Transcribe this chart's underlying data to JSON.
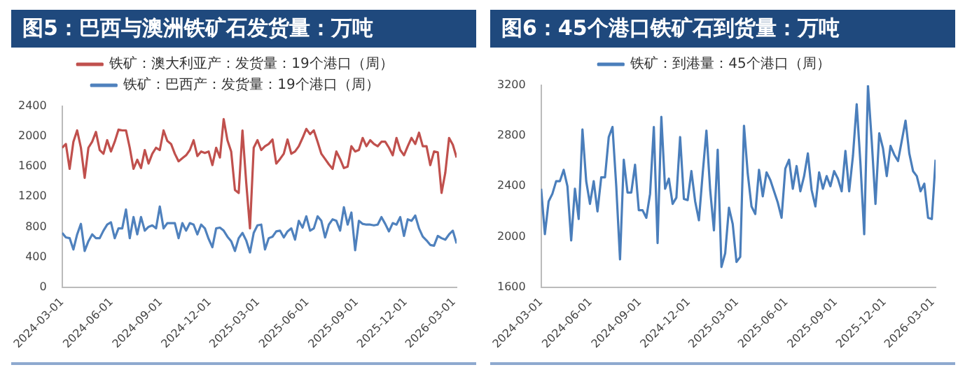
{
  "chart_data": [
    {
      "type": "line",
      "title": "图5：巴西与澳洲铁矿石发货量：万吨",
      "legend": "top",
      "marker": "none",
      "x": [
        "2024-03-01",
        "2024-03-08",
        "2024-03-15",
        "2024-03-22",
        "2024-03-29",
        "2024-04-05",
        "2024-04-12",
        "2024-04-19",
        "2024-04-26",
        "2024-05-03",
        "2024-05-10",
        "2024-05-17",
        "2024-05-24",
        "2024-05-31",
        "2024-06-07",
        "2024-06-14",
        "2024-06-21",
        "2024-06-28",
        "2024-07-05",
        "2024-07-12",
        "2024-07-19",
        "2024-07-26",
        "2024-08-02",
        "2024-08-09",
        "2024-08-16",
        "2024-08-23",
        "2024-08-30",
        "2024-09-06",
        "2024-09-13",
        "2024-09-20",
        "2024-09-27",
        "2024-10-04",
        "2024-10-11",
        "2024-10-18",
        "2024-10-25",
        "2024-11-01",
        "2024-11-08",
        "2024-11-15",
        "2024-11-22",
        "2024-11-29",
        "2024-12-06",
        "2024-12-13",
        "2024-12-20",
        "2024-12-27",
        "2025-01-03",
        "2025-01-10",
        "2025-01-17",
        "2025-01-24",
        "2025-01-31",
        "2025-02-07",
        "2025-02-14",
        "2025-02-21",
        "2025-02-28",
        "2025-03-07",
        "2025-03-14",
        "2025-03-21",
        "2025-03-28",
        "2025-04-04",
        "2025-04-11",
        "2025-04-18",
        "2025-04-25",
        "2025-05-02",
        "2025-05-09",
        "2025-05-16",
        "2025-05-23",
        "2025-05-30",
        "2025-06-06",
        "2025-06-13",
        "2025-06-20",
        "2025-06-27",
        "2025-07-04",
        "2025-07-11",
        "2025-07-18",
        "2025-07-25",
        "2025-08-01",
        "2025-08-08",
        "2025-08-15",
        "2025-08-22",
        "2025-08-29",
        "2025-09-05",
        "2025-09-12",
        "2025-09-19",
        "2025-09-26",
        "2025-10-03",
        "2025-10-10",
        "2025-10-17",
        "2025-10-24",
        "2025-10-31",
        "2025-11-07",
        "2025-11-14",
        "2025-11-21",
        "2025-11-28",
        "2025-12-05",
        "2025-12-12",
        "2025-12-19",
        "2025-12-26",
        "2026-01-02",
        "2026-01-09",
        "2026-01-16",
        "2026-01-23",
        "2026-01-30",
        "2026-02-06",
        "2026-02-13",
        "2026-02-20",
        "2026-02-27",
        "2026-03-06"
      ],
      "xlim": [
        "2024-03-01",
        "2026-03-06"
      ],
      "xticks": [
        "2024-03-01",
        "2024-06-01",
        "2024-09-01",
        "2024-12-01",
        "2025-03-01",
        "2025-06-01",
        "2025-09-01",
        "2025-12-01",
        "2026-03-01"
      ],
      "ylim": [
        0,
        2400
      ],
      "yticks": [
        0,
        400,
        800,
        1200,
        1600,
        2000,
        2400
      ],
      "series": [
        {
          "name": "铁矿：澳大利亚产：发货量：19个港口（周）",
          "color": "#c0504d",
          "values": [
            1850,
            1900,
            1570,
            1930,
            2080,
            1850,
            1450,
            1850,
            1930,
            2060,
            1820,
            1770,
            1950,
            1800,
            1930,
            2090,
            2080,
            2080,
            1850,
            1570,
            1690,
            1580,
            1820,
            1640,
            1770,
            1850,
            1820,
            2080,
            1940,
            1900,
            1770,
            1670,
            1710,
            1750,
            1820,
            1950,
            1740,
            1800,
            1780,
            1800,
            1620,
            1850,
            1720,
            2230,
            1950,
            1800,
            1290,
            1250,
            2080,
            1390,
            780,
            1850,
            1950,
            1820,
            1870,
            1900,
            1960,
            1640,
            1700,
            1770,
            1960,
            1770,
            1800,
            1870,
            1980,
            2100,
            2030,
            2080,
            1930,
            1770,
            1700,
            1630,
            1570,
            1800,
            1700,
            1580,
            1600,
            1870,
            1800,
            1820,
            1980,
            1870,
            1950,
            1900,
            1870,
            1930,
            1930,
            1850,
            1750,
            1980,
            1820,
            1750,
            1870,
            1980,
            1900,
            2050,
            1870,
            1870,
            1620,
            1800,
            1790,
            1250,
            1520,
            1980,
            1890,
            1720
          ]
        },
        {
          "name": "铁矿：巴西产：发货量：19个港口（周）",
          "color": "#4f81bd",
          "values": [
            720,
            660,
            650,
            500,
            700,
            840,
            480,
            610,
            700,
            650,
            650,
            750,
            830,
            860,
            650,
            780,
            780,
            1030,
            650,
            930,
            700,
            930,
            750,
            800,
            820,
            780,
            1070,
            780,
            850,
            850,
            850,
            650,
            850,
            750,
            850,
            830,
            700,
            830,
            780,
            640,
            530,
            780,
            790,
            750,
            670,
            610,
            480,
            650,
            720,
            620,
            460,
            720,
            820,
            830,
            500,
            650,
            670,
            740,
            750,
            660,
            740,
            780,
            630,
            880,
            790,
            940,
            750,
            780,
            940,
            880,
            660,
            830,
            900,
            880,
            750,
            1060,
            830,
            990,
            490,
            880,
            840,
            830,
            830,
            820,
            830,
            930,
            840,
            740,
            850,
            830,
            930,
            680,
            900,
            880,
            950,
            780,
            670,
            620,
            560,
            550,
            680,
            650,
            630,
            700,
            750,
            580
          ]
        }
      ]
    },
    {
      "type": "line",
      "title": "图6：45个港口铁矿石到货量：万吨",
      "legend": "top",
      "marker": "none",
      "x": [
        "2024-03-01",
        "2024-03-08",
        "2024-03-15",
        "2024-03-22",
        "2024-03-29",
        "2024-04-05",
        "2024-04-12",
        "2024-04-19",
        "2024-04-26",
        "2024-05-03",
        "2024-05-10",
        "2024-05-17",
        "2024-05-24",
        "2024-05-31",
        "2024-06-07",
        "2024-06-14",
        "2024-06-21",
        "2024-06-28",
        "2024-07-05",
        "2024-07-12",
        "2024-07-19",
        "2024-07-26",
        "2024-08-02",
        "2024-08-09",
        "2024-08-16",
        "2024-08-23",
        "2024-08-30",
        "2024-09-06",
        "2024-09-13",
        "2024-09-20",
        "2024-09-27",
        "2024-10-04",
        "2024-10-11",
        "2024-10-18",
        "2024-10-25",
        "2024-11-01",
        "2024-11-08",
        "2024-11-15",
        "2024-11-22",
        "2024-11-29",
        "2024-12-06",
        "2024-12-13",
        "2024-12-20",
        "2024-12-27",
        "2025-01-03",
        "2025-01-10",
        "2025-01-17",
        "2025-01-24",
        "2025-01-31",
        "2025-02-07",
        "2025-02-14",
        "2025-02-21",
        "2025-02-28",
        "2025-03-07",
        "2025-03-14",
        "2025-03-21",
        "2025-03-28",
        "2025-04-04",
        "2025-04-11",
        "2025-04-18",
        "2025-04-25",
        "2025-05-02",
        "2025-05-09",
        "2025-05-16",
        "2025-05-23",
        "2025-05-30",
        "2025-06-06",
        "2025-06-13",
        "2025-06-20",
        "2025-06-27",
        "2025-07-04",
        "2025-07-11",
        "2025-07-18",
        "2025-07-25",
        "2025-08-01",
        "2025-08-08",
        "2025-08-15",
        "2025-08-22",
        "2025-08-29",
        "2025-09-05",
        "2025-09-12",
        "2025-09-19",
        "2025-09-26",
        "2025-10-03",
        "2025-10-10",
        "2025-10-17",
        "2025-10-24",
        "2025-10-31",
        "2025-11-07",
        "2025-11-14",
        "2025-11-21",
        "2025-11-28",
        "2025-12-05",
        "2025-12-12",
        "2025-12-19",
        "2025-12-26",
        "2026-01-02",
        "2026-01-09",
        "2026-01-16",
        "2026-01-23",
        "2026-01-30",
        "2026-02-06",
        "2026-02-13",
        "2026-02-20",
        "2026-02-27",
        "2026-03-06"
      ],
      "xlim": [
        "2024-03-01",
        "2026-03-06"
      ],
      "xticks": [
        "2024-03-01",
        "2024-06-01",
        "2024-09-01",
        "2024-12-01",
        "2025-03-01",
        "2025-06-01",
        "2025-09-01",
        "2025-12-01",
        "2026-03-01"
      ],
      "ylim": [
        1600,
        3200
      ],
      "yticks": [
        1600,
        2000,
        2400,
        2800,
        3200
      ],
      "series": [
        {
          "name": "铁矿：到港量：45个港口（周）",
          "color": "#4a7ebb",
          "values": [
            2380,
            2020,
            2280,
            2340,
            2440,
            2440,
            2530,
            2400,
            1970,
            2380,
            2140,
            2850,
            2440,
            2260,
            2440,
            2200,
            2470,
            2470,
            2790,
            2870,
            2400,
            1820,
            2610,
            2350,
            2350,
            2570,
            2210,
            2210,
            2150,
            2340,
            2870,
            1950,
            2950,
            2380,
            2460,
            2260,
            2310,
            2790,
            2300,
            2290,
            2520,
            2280,
            2130,
            2500,
            2840,
            2370,
            2050,
            2690,
            1760,
            1870,
            2230,
            2100,
            1800,
            1840,
            2880,
            2500,
            2240,
            2180,
            2530,
            2320,
            2510,
            2450,
            2360,
            2270,
            2150,
            2540,
            2610,
            2380,
            2560,
            2360,
            2480,
            2660,
            2370,
            2240,
            2510,
            2380,
            2480,
            2400,
            2520,
            2460,
            2360,
            2680,
            2360,
            2640,
            3050,
            2580,
            2020,
            3200,
            2760,
            2260,
            2820,
            2700,
            2480,
            2720,
            2650,
            2600,
            2760,
            2920,
            2660,
            2520,
            2480,
            2360,
            2420,
            2150,
            2140,
            2610
          ]
        }
      ]
    }
  ]
}
